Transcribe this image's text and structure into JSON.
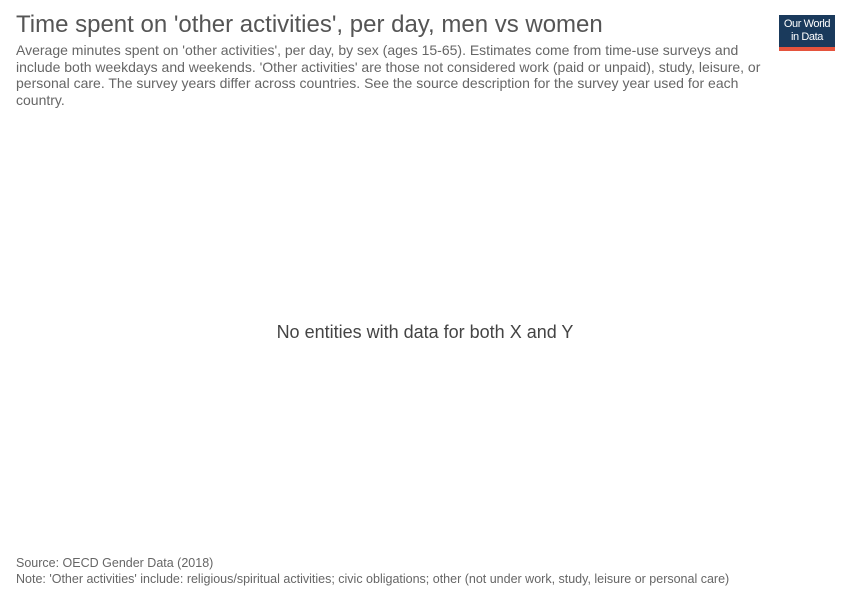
{
  "chart_data": {
    "type": "scatter",
    "title": "Time spent on 'other activities', per day, men vs women",
    "subtitle": "Average minutes spent on 'other activities', per day, by sex (ages 15-65). Estimates come from time-use surveys and include both weekdays and weekends. 'Other activities' are those not considered work (paid or unpaid), study, leisure, or personal care. The survey years differ across countries. See the source description for the survey year used for each country.",
    "series": [],
    "message": "No entities with data for both X and Y",
    "source": "Source: OECD Gender Data (2018)",
    "note": "Note: 'Other activities' include: religious/spiritual activities; civic obligations; other (not under work, study, leisure or personal care)"
  },
  "logo": {
    "line1": "Our World",
    "line2": "in Data"
  },
  "colors": {
    "logo_background": "#1a3a5c",
    "logo_accent": "#e5533d"
  }
}
